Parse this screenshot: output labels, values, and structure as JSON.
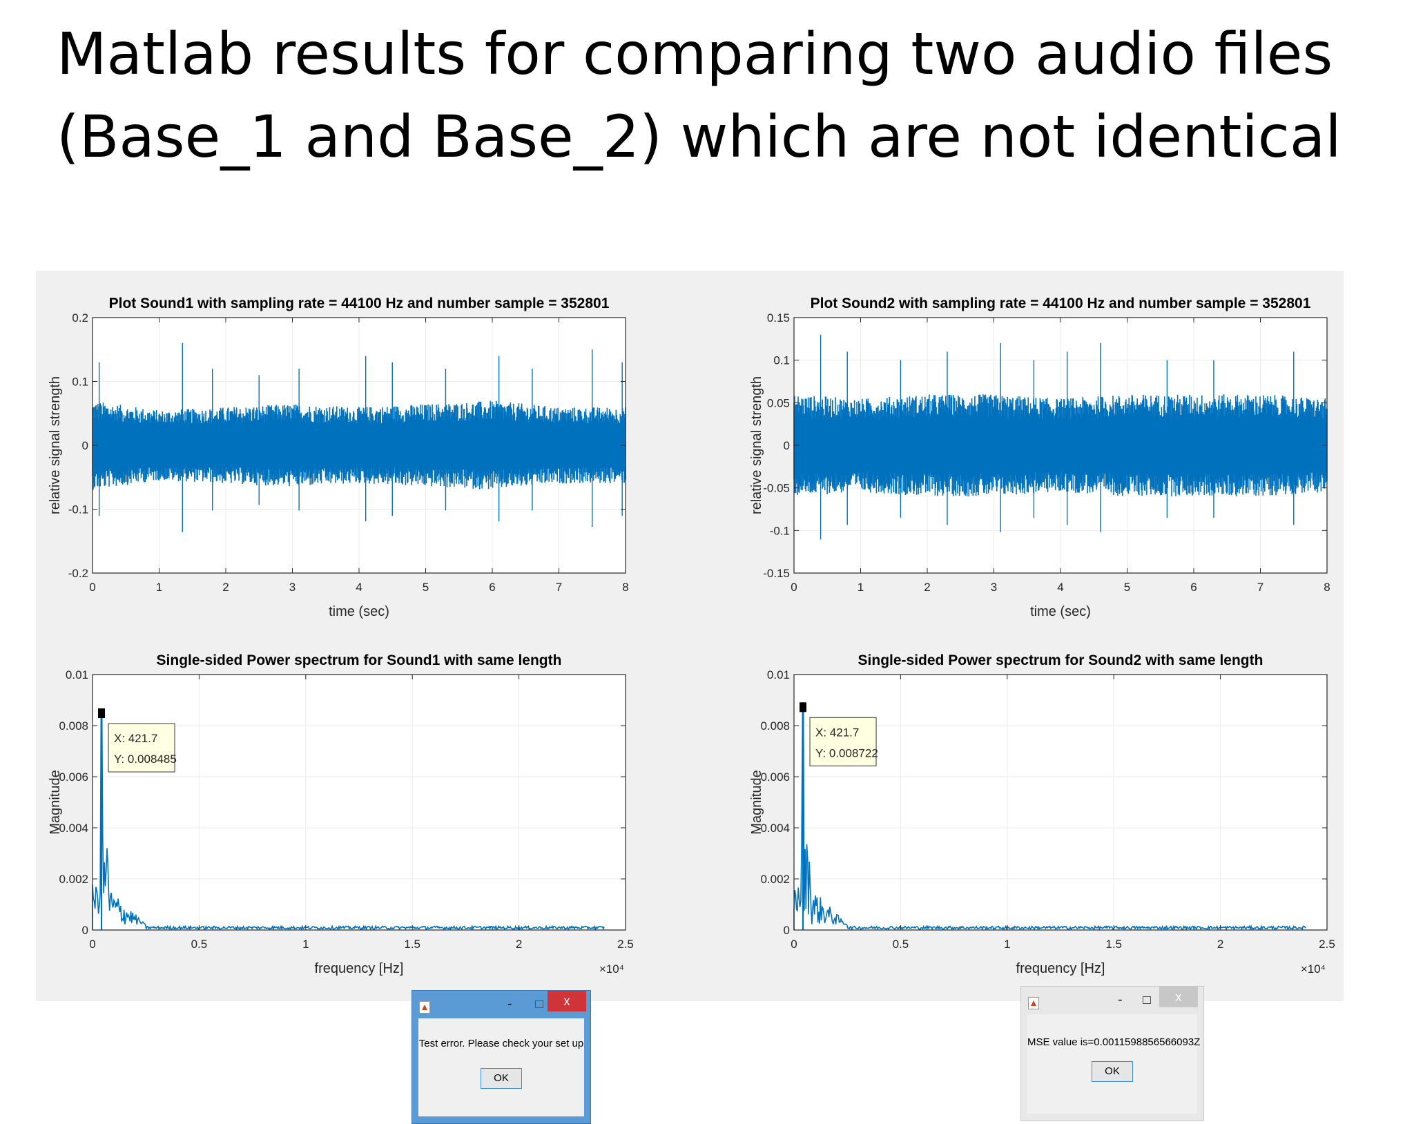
{
  "slide": {
    "title_line1": "Matlab results for comparing two audio files",
    "title_line2": "(Base_1 and Base_2) which are not identical"
  },
  "colors": {
    "line": "#0072bd",
    "figure_bg": "#f0f0f0",
    "grid": "#ebebeb"
  },
  "chart_data": [
    {
      "id": "wave1",
      "type": "line",
      "title": "Plot Sound1 with sampling rate = 44100 Hz and number sample = 352801",
      "xlabel": "time (sec)",
      "ylabel": "relative signal strength",
      "xlim": [
        0,
        8
      ],
      "ylim": [
        -0.2,
        0.2
      ],
      "xticks": [
        0,
        1,
        2,
        3,
        4,
        5,
        6,
        7,
        8
      ],
      "xticklabels": [
        "0",
        "1",
        "2",
        "3",
        "4",
        "5",
        "6",
        "7",
        "8"
      ],
      "yticks": [
        -0.2,
        -0.1,
        0,
        0.1,
        0.2
      ],
      "yticklabels": [
        "-0.2",
        "-0.1",
        "0",
        "0.1",
        "0.2"
      ],
      "grid": true,
      "envelope": [
        0.07,
        0.055,
        0.06,
        0.065,
        0.06,
        0.065,
        0.07,
        0.06,
        0.06
      ],
      "spikes": [
        [
          0.1,
          0.13
        ],
        [
          1.35,
          0.16
        ],
        [
          1.8,
          0.12
        ],
        [
          2.5,
          0.11
        ],
        [
          3.1,
          0.12
        ],
        [
          4.1,
          0.14
        ],
        [
          4.5,
          0.13
        ],
        [
          5.3,
          0.12
        ],
        [
          6.1,
          0.14
        ],
        [
          6.6,
          0.12
        ],
        [
          7.5,
          0.15
        ],
        [
          7.95,
          0.13
        ]
      ]
    },
    {
      "id": "wave2",
      "type": "line",
      "title": "Plot Sound2 with sampling rate = 44100 Hz and number sample = 352801",
      "xlabel": "time (sec)",
      "ylabel": "relative signal strength",
      "xlim": [
        0,
        8
      ],
      "ylim": [
        -0.15,
        0.15
      ],
      "xticks": [
        0,
        1,
        2,
        3,
        4,
        5,
        6,
        7,
        8
      ],
      "xticklabels": [
        "0",
        "1",
        "2",
        "3",
        "4",
        "5",
        "6",
        "7",
        "8"
      ],
      "yticks": [
        -0.15,
        -0.1,
        -0.05,
        0,
        0.05,
        0.1,
        0.15
      ],
      "yticklabels": [
        "-0.15",
        "-0.1",
        "-0.05",
        "0",
        "0.05",
        "0.1",
        "0.15"
      ],
      "grid": true,
      "envelope": [
        0.06,
        0.055,
        0.06,
        0.06,
        0.055,
        0.06,
        0.06,
        0.06,
        0.055
      ],
      "spikes": [
        [
          0.4,
          0.13
        ],
        [
          0.8,
          0.11
        ],
        [
          1.6,
          0.1
        ],
        [
          2.3,
          0.11
        ],
        [
          3.1,
          0.12
        ],
        [
          3.6,
          0.1
        ],
        [
          4.1,
          0.11
        ],
        [
          4.6,
          0.12
        ],
        [
          5.6,
          0.1
        ],
        [
          6.3,
          0.1
        ],
        [
          7.5,
          0.11
        ]
      ]
    },
    {
      "id": "spec1",
      "type": "line",
      "title": "Single-sided Power spectrum for Sound1 with same length",
      "xlabel": "frequency [Hz]",
      "ylabel": "Magnitude",
      "xlim": [
        0,
        25000
      ],
      "ylim": [
        0,
        0.01
      ],
      "xticks": [
        0,
        5000,
        10000,
        15000,
        20000,
        25000
      ],
      "xticklabels": [
        "0",
        "0.5",
        "1",
        "1.5",
        "2",
        "2.5"
      ],
      "x_multiplier": "×10⁴",
      "yticks": [
        0,
        0.002,
        0.004,
        0.006,
        0.008,
        0.01
      ],
      "yticklabels": [
        "0",
        "0.002",
        "0.004",
        "0.006",
        "0.008",
        "0.01"
      ],
      "grid": true,
      "peak": {
        "x": 421.7,
        "y": 0.008485
      },
      "datatip": {
        "x_label": "X: 421.7",
        "y_label": "Y: 0.008485"
      }
    },
    {
      "id": "spec2",
      "type": "line",
      "title": "Single-sided Power spectrum for Sound2 with same length",
      "xlabel": "frequency [Hz]",
      "ylabel": "Magnitude",
      "xlim": [
        0,
        25000
      ],
      "ylim": [
        0,
        0.01
      ],
      "xticks": [
        0,
        5000,
        10000,
        15000,
        20000,
        25000
      ],
      "xticklabels": [
        "0",
        "0.5",
        "1",
        "1.5",
        "2",
        "2.5"
      ],
      "x_multiplier": "×10⁴",
      "yticks": [
        0,
        0.002,
        0.004,
        0.006,
        0.008,
        0.01
      ],
      "yticklabels": [
        "0",
        "0.002",
        "0.004",
        "0.006",
        "0.008",
        "0.01"
      ],
      "grid": true,
      "peak": {
        "x": 421.7,
        "y": 0.008722
      },
      "datatip": {
        "x_label": "X: 421.7",
        "y_label": "Y: 0.008722"
      }
    }
  ],
  "dialogs": {
    "error": {
      "message": "Test error. Please check your set up",
      "ok_label": "OK",
      "close_glyph": "x",
      "min_glyph": "-"
    },
    "mse": {
      "message": "MSE value is=0.0011598856566093Z",
      "ok_label": "OK",
      "close_glyph": "x",
      "min_glyph": "-"
    }
  }
}
